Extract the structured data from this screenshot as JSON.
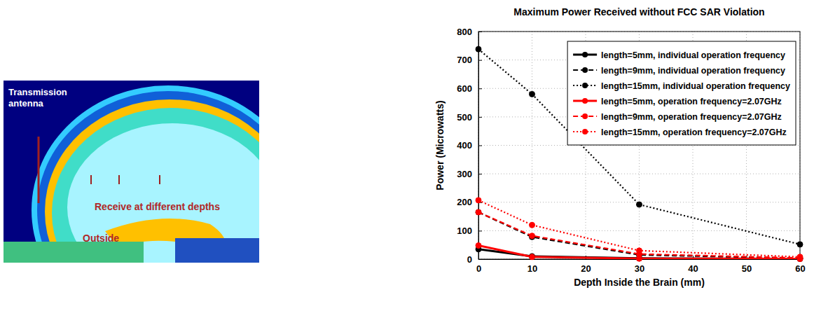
{
  "chart_data": {
    "type": "line",
    "title": "Maximum Power Received without FCC SAR Violation",
    "x_label": "Depth Inside the Brain (mm)",
    "y_label": "Power (Microwatts)",
    "x": [
      0,
      10,
      30,
      60
    ],
    "xlim": [
      0,
      60
    ],
    "xticks": [
      0,
      10,
      20,
      30,
      40,
      50,
      60
    ],
    "ylim": [
      0,
      800
    ],
    "yticks": [
      0,
      100,
      200,
      300,
      400,
      500,
      600,
      700,
      800
    ],
    "grid": true,
    "legend": "upper right",
    "series": [
      {
        "name": "length=5mm, individual operation frequency",
        "color": "#000000",
        "line_style": "solid",
        "marker": "circle",
        "values": [
          35,
          10,
          3,
          1
        ]
      },
      {
        "name": "length=9mm, individual operation frequency",
        "color": "#000000",
        "line_style": "dashed",
        "marker": "circle",
        "values": [
          165,
          78,
          15,
          3
        ]
      },
      {
        "name": "length=15mm, individual operation frequency",
        "color": "#000000",
        "line_style": "dotted",
        "marker": "circle",
        "values": [
          738,
          580,
          192,
          52
        ]
      },
      {
        "name": "length=5mm, operation frequency=2.07GHz",
        "color": "#ff0000",
        "line_style": "solid",
        "marker": "circle",
        "values": [
          48,
          8,
          2,
          1
        ]
      },
      {
        "name": "length=9mm, operation frequency=2.07GHz",
        "color": "#ff0000",
        "line_style": "dashed",
        "marker": "circle",
        "values": [
          165,
          82,
          18,
          4
        ]
      },
      {
        "name": "length=15mm, operation frequency=2.07GHz",
        "color": "#ff0000",
        "line_style": "dotted",
        "marker": "circle",
        "values": [
          207,
          120,
          30,
          8
        ]
      }
    ]
  },
  "diagram": {
    "labels": [
      "Transmission antenna",
      "Receive at different depths",
      "Outside"
    ]
  }
}
